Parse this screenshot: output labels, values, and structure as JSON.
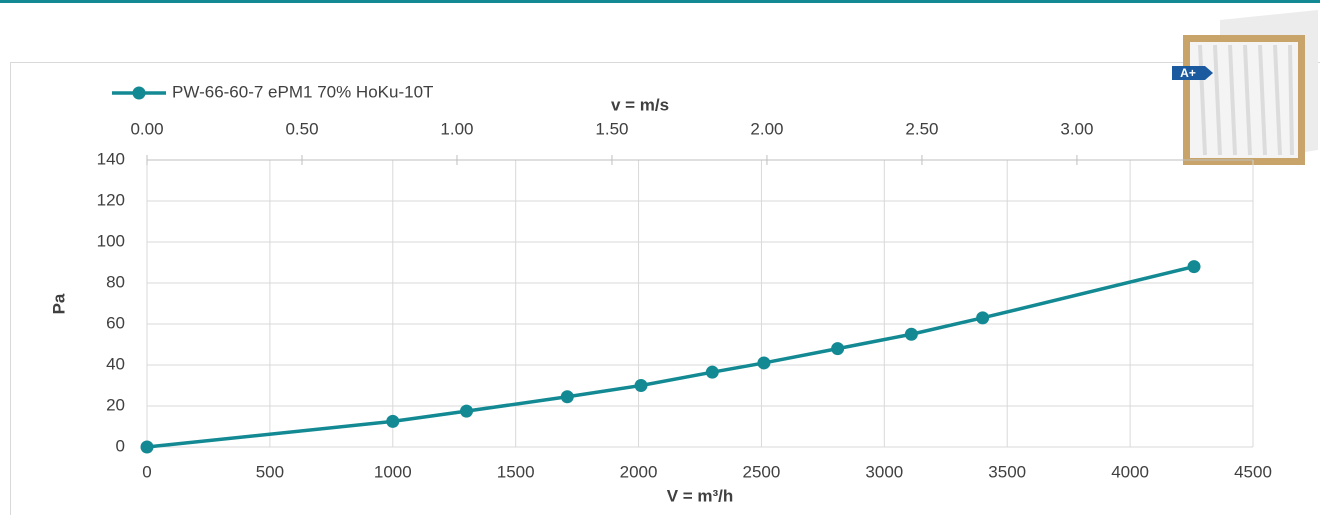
{
  "chart_data": {
    "type": "line",
    "x_label": "V = m³/h",
    "y_label": "Pa",
    "x2_label": "v = m/s",
    "badge": "A+",
    "x": [
      0,
      1000,
      1300,
      1710,
      2010,
      2300,
      2510,
      2810,
      3110,
      3400,
      4260
    ],
    "series": [
      {
        "name": "PW-66-60-7 ePM1 70% HoKu-10T",
        "color": "#138a93",
        "values": [
          0,
          12.5,
          17.5,
          24.5,
          30,
          36.5,
          41,
          48,
          55,
          63,
          88
        ]
      }
    ],
    "xlim": [
      0,
      4500
    ],
    "xticks": [
      0,
      500,
      1000,
      1500,
      2000,
      2500,
      3000,
      3500,
      4000,
      4500
    ],
    "ylim": [
      0,
      140
    ],
    "yticks": [
      0,
      20,
      40,
      60,
      80,
      100,
      120,
      140
    ],
    "x2lim": [
      0,
      3.568
    ],
    "x2ticks": [
      {
        "value": 0,
        "label": "0.00"
      },
      {
        "value": 0.5,
        "label": "0.50"
      },
      {
        "value": 1,
        "label": "1.00"
      },
      {
        "value": 1.5,
        "label": "1.50"
      },
      {
        "value": 2,
        "label": "2.00"
      },
      {
        "value": 2.5,
        "label": "2.50"
      },
      {
        "value": 3,
        "label": "3.00"
      }
    ],
    "grid": true,
    "legend": "top-left"
  }
}
